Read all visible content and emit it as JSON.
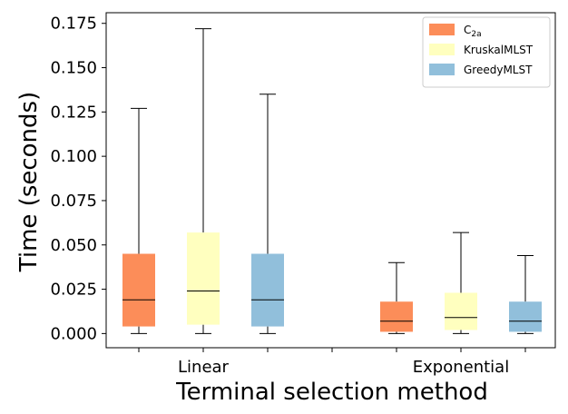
{
  "chart_data": {
    "type": "box",
    "title": "",
    "xlabel": "Terminal selection method",
    "ylabel": "Time (seconds)",
    "ylim": [
      -0.008,
      0.181
    ],
    "yticks": [
      0.0,
      0.025,
      0.05,
      0.075,
      0.1,
      0.125,
      0.15,
      0.175
    ],
    "ytick_labels": [
      "0.000",
      "0.025",
      "0.050",
      "0.075",
      "0.100",
      "0.125",
      "0.150",
      "0.175"
    ],
    "groups": [
      "Linear",
      "Exponential"
    ],
    "series": [
      {
        "name": "C2a",
        "label_main": "C",
        "label_sub": "2a",
        "color": "#fc8d59",
        "boxes": [
          {
            "group": "Linear",
            "whisker_low": 0.0,
            "q1": 0.004,
            "median": 0.019,
            "q3": 0.045,
            "whisker_high": 0.127
          },
          {
            "group": "Exponential",
            "whisker_low": 0.0,
            "q1": 0.001,
            "median": 0.007,
            "q3": 0.018,
            "whisker_high": 0.04
          }
        ]
      },
      {
        "name": "KruskalMLST",
        "color": "#ffffbf",
        "boxes": [
          {
            "group": "Linear",
            "whisker_low": 0.0,
            "q1": 0.005,
            "median": 0.024,
            "q3": 0.057,
            "whisker_high": 0.172
          },
          {
            "group": "Exponential",
            "whisker_low": 0.0,
            "q1": 0.002,
            "median": 0.009,
            "q3": 0.023,
            "whisker_high": 0.057
          }
        ]
      },
      {
        "name": "GreedyMLST",
        "color": "#91bfdb",
        "boxes": [
          {
            "group": "Linear",
            "whisker_low": 0.0,
            "q1": 0.004,
            "median": 0.019,
            "q3": 0.045,
            "whisker_high": 0.135
          },
          {
            "group": "Exponential",
            "whisker_low": 0.0,
            "q1": 0.001,
            "median": 0.007,
            "q3": 0.018,
            "whisker_high": 0.044
          }
        ]
      }
    ],
    "legend_position": "top-right"
  }
}
